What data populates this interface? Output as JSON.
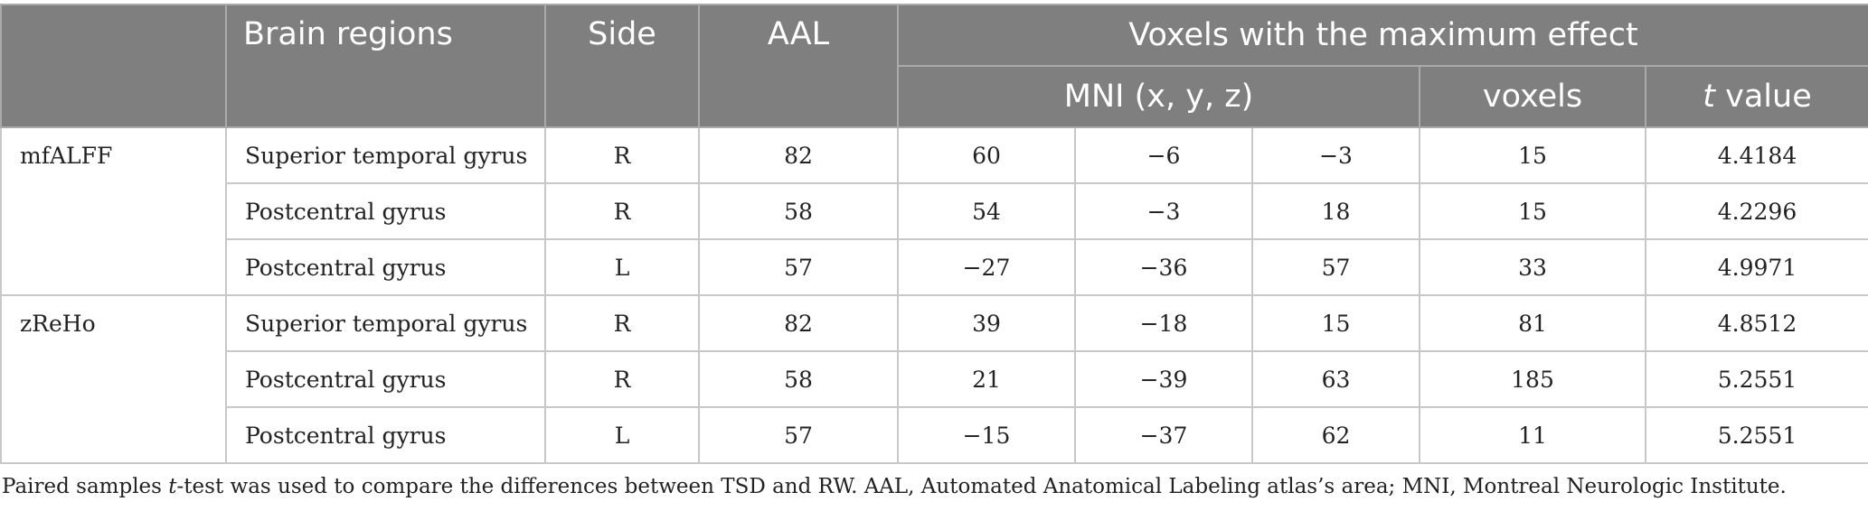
{
  "header": {
    "brain_regions": "Brain regions",
    "side": "Side",
    "aal": "AAL",
    "voxels_max_effect": "Voxels with the maximum effect",
    "mni": "MNI (x, y, z)",
    "voxels": "voxels",
    "t_italic": "t",
    "t_rest": " value"
  },
  "groups": [
    {
      "label": "mfALFF",
      "rows": [
        {
          "region": "Superior temporal gyrus",
          "side": "R",
          "aal": "82",
          "x": "60",
          "y": "−6",
          "z": "−3",
          "voxels": "15",
          "t": "4.4184"
        },
        {
          "region": "Postcentral gyrus",
          "side": "R",
          "aal": "58",
          "x": "54",
          "y": "−3",
          "z": "18",
          "voxels": "15",
          "t": "4.2296"
        },
        {
          "region": "Postcentral gyrus",
          "side": "L",
          "aal": "57",
          "x": "−27",
          "y": "−36",
          "z": "57",
          "voxels": "33",
          "t": "4.9971"
        }
      ]
    },
    {
      "label": "zReHo",
      "rows": [
        {
          "region": "Superior temporal gyrus",
          "side": "R",
          "aal": "82",
          "x": "39",
          "y": "−18",
          "z": "15",
          "voxels": "81",
          "t": "4.8512"
        },
        {
          "region": "Postcentral gyrus",
          "side": "R",
          "aal": "58",
          "x": "21",
          "y": "−39",
          "z": "63",
          "voxels": "185",
          "t": "5.2551"
        },
        {
          "region": "Postcentral gyrus",
          "side": "L",
          "aal": "57",
          "x": "−15",
          "y": "−37",
          "z": "62",
          "voxels": "11",
          "t": "5.2551"
        }
      ]
    }
  ],
  "footnote": {
    "part1": "Paired samples ",
    "t_italic": "t",
    "part2": "-test was used to compare the differences between TSD and RW. AAL, Automated Anatomical Labeling atlas’s area; MNI, Montreal Neurologic Institute."
  }
}
